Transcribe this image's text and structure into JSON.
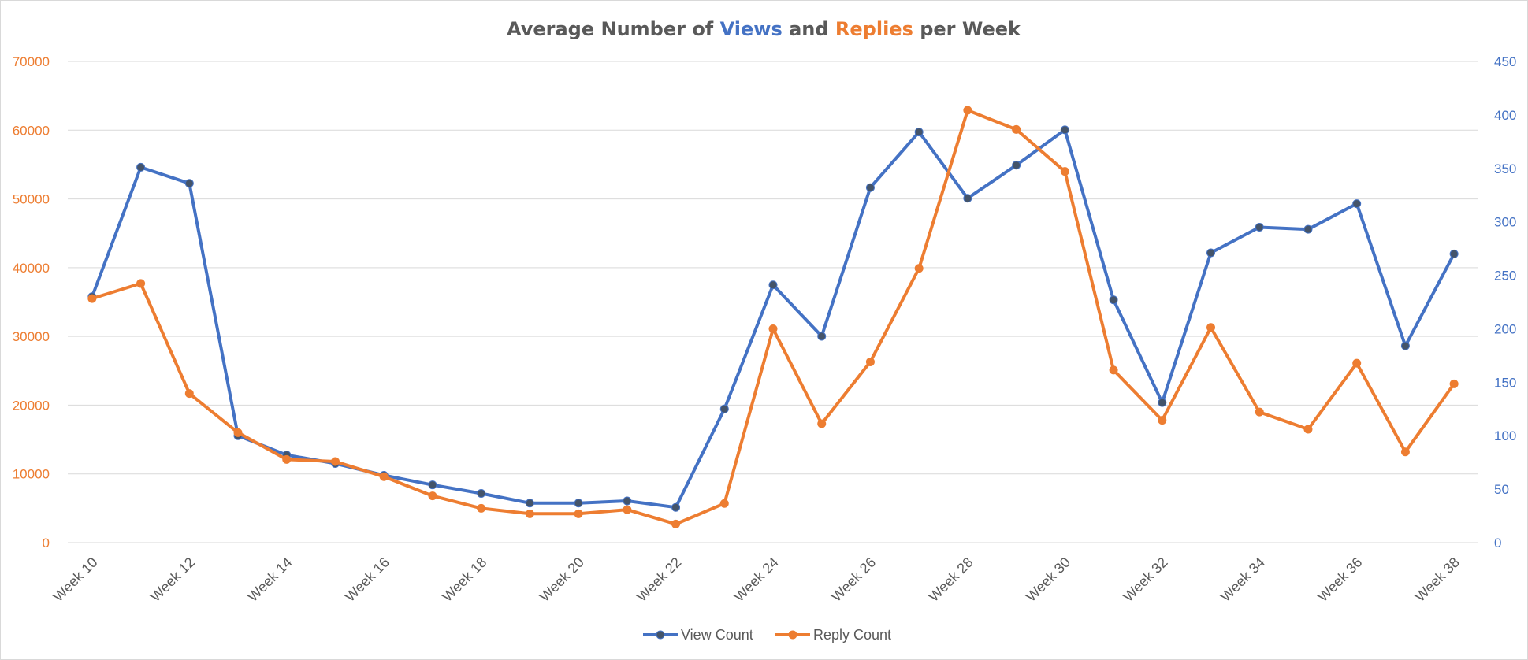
{
  "chart_data": {
    "type": "line",
    "title": {
      "segments": [
        {
          "text": "Average Number of ",
          "color": "#595959"
        },
        {
          "text": "Views",
          "color": "#4472C4"
        },
        {
          "text": " and ",
          "color": "#595959"
        },
        {
          "text": "Replies",
          "color": "#ED7D31"
        },
        {
          "text": " per Week",
          "color": "#595959"
        }
      ]
    },
    "categories": [
      "Week 10",
      "Week 11",
      "Week 12",
      "Week 13",
      "Week 14",
      "Week 15",
      "Week 16",
      "Week 17",
      "Week 18",
      "Week 19",
      "Week 20",
      "Week 21",
      "Week 22",
      "Week 23",
      "Week 24",
      "Week 25",
      "Week 26",
      "Week 27",
      "Week 28",
      "Week 29",
      "Week 30",
      "Week 31",
      "Week 32",
      "Week 33",
      "Week 34",
      "Week 35",
      "Week 36",
      "Week 37",
      "Week 38"
    ],
    "x_tick_labels": [
      "Week 10",
      "Week 12",
      "Week 14",
      "Week 16",
      "Week 18",
      "Week 20",
      "Week 22",
      "Week 24",
      "Week 26",
      "Week 28",
      "Week 30",
      "Week 32",
      "Week 34",
      "Week 36",
      "Week 38"
    ],
    "y_left": {
      "min": 0,
      "max": 70000,
      "ticks": [
        0,
        10000,
        20000,
        30000,
        40000,
        50000,
        60000,
        70000
      ],
      "color": "#ED7D31"
    },
    "y_right": {
      "min": 0,
      "max": 450,
      "ticks": [
        0,
        50,
        100,
        150,
        200,
        250,
        300,
        350,
        400,
        450
      ],
      "color": "#4472C4"
    },
    "grid": true,
    "legend_position": "bottom",
    "series": [
      {
        "name": "View Count",
        "axis": "right",
        "color": "#4472C4",
        "marker_color": "#44546A",
        "values": [
          230,
          351,
          336,
          100,
          82,
          74,
          63,
          54,
          46,
          37,
          37,
          39,
          33,
          125,
          241,
          193,
          332,
          384,
          322,
          353,
          386,
          227,
          131,
          271,
          295,
          293,
          317,
          184,
          270
        ]
      },
      {
        "name": "Reply Count",
        "axis": "left",
        "color": "#ED7D31",
        "marker_color": "#ED7D31",
        "values": [
          35500,
          37700,
          21700,
          16000,
          12100,
          11800,
          9600,
          6800,
          5000,
          4200,
          4200,
          4800,
          2700,
          5700,
          31100,
          17300,
          26300,
          39900,
          62900,
          60100,
          54000,
          25100,
          17800,
          31300,
          19000,
          16500,
          26100,
          13200,
          23100
        ]
      }
    ]
  }
}
